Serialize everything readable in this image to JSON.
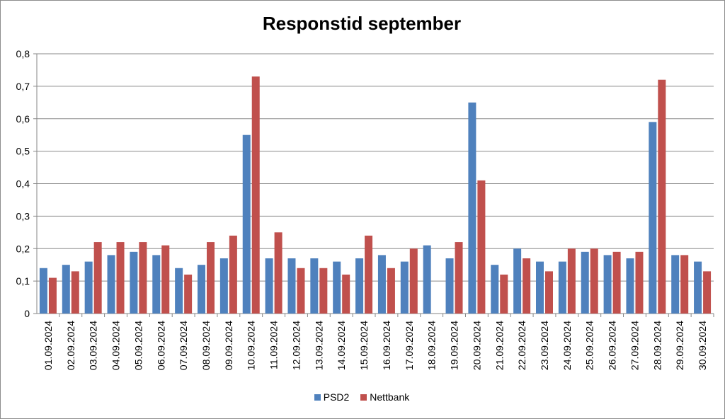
{
  "chart_data": {
    "type": "bar",
    "title": "Responstid september",
    "xlabel": "",
    "ylabel": "",
    "ylim": [
      0,
      0.8
    ],
    "yticks": [
      "0",
      "0,1",
      "0,2",
      "0,3",
      "0,4",
      "0,5",
      "0,6",
      "0,7",
      "0,8"
    ],
    "grid": true,
    "legend_position": "bottom",
    "categories": [
      "01.09.2024",
      "02.09.2024",
      "03.09.2024",
      "04.09.2024",
      "05.09.2024",
      "06.09.2024",
      "07.09.2024",
      "08.09.2024",
      "09.09.2024",
      "10.09.2024",
      "11.09.2024",
      "12.09.2024",
      "13.09.2024",
      "14.09.2024",
      "15.09.2024",
      "16.09.2024",
      "17.09.2024",
      "18.09.2024",
      "19.09.2024",
      "20.09.2024",
      "21.09.2024",
      "22.09.2024",
      "23.09.2024",
      "24.09.2024",
      "25.09.2024",
      "26.09.2024",
      "27.09.2024",
      "28.09.2024",
      "29.09.2024",
      "30.09.2024"
    ],
    "series": [
      {
        "name": "PSD2",
        "color": "#4f81bd",
        "values": [
          0.14,
          0.15,
          0.16,
          0.18,
          0.19,
          0.18,
          0.14,
          0.15,
          0.17,
          0.55,
          0.17,
          0.17,
          0.17,
          0.16,
          0.17,
          0.18,
          0.16,
          0.21,
          0.17,
          0.65,
          0.15,
          0.2,
          0.16,
          0.16,
          0.19,
          0.18,
          0.17,
          0.59,
          0.18,
          0.16
        ]
      },
      {
        "name": "Nettbank",
        "color": "#c0504d",
        "values": [
          0.11,
          0.13,
          0.22,
          0.22,
          0.22,
          0.21,
          0.12,
          0.22,
          0.24,
          0.73,
          0.25,
          0.14,
          0.14,
          0.12,
          0.24,
          0.14,
          0.2,
          null,
          0.22,
          0.41,
          0.12,
          0.17,
          0.13,
          0.2,
          0.2,
          0.19,
          0.19,
          0.72,
          0.18,
          0.13
        ]
      }
    ]
  }
}
